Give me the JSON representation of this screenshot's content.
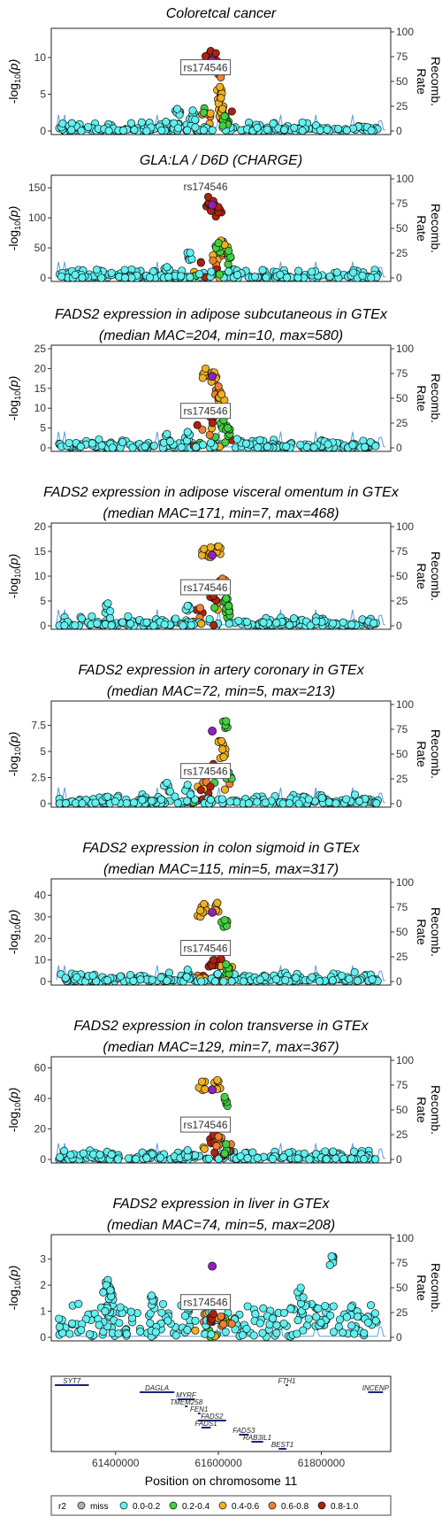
{
  "colors": {
    "miss": "#b0b0b0",
    "r2_0": "#60f0f0",
    "r2_1": "#40d040",
    "r2_2": "#f0b020",
    "r2_3": "#f08030",
    "r2_4": "#b02010",
    "lead": "#9020c0",
    "recomb": "#5a9ee0"
  },
  "shared": {
    "ylabel": "-log10(p)",
    "ylabel_main": "-log",
    "ylabel_sub": "10",
    "ylabel_paren": "(p)",
    "right_label": "Recomb. Rate",
    "right_ticks": [
      "0",
      "25",
      "50",
      "75",
      "100"
    ],
    "xlabel": "Position on chromosome 11",
    "xticks": [
      "61400000",
      "61600000",
      "61800000"
    ],
    "lead_snp": "rs174546"
  },
  "legend": {
    "title": "r2",
    "items": [
      {
        "label": "miss",
        "color": "#b0b0b0"
      },
      {
        "label": "0.0-0.2",
        "color": "#60f0f0"
      },
      {
        "label": "0.2-0.4",
        "color": "#40d040"
      },
      {
        "label": "0.4-0.6",
        "color": "#f0b020"
      },
      {
        "label": "0.6-0.8",
        "color": "#f08030"
      },
      {
        "label": "0.8-1.0",
        "color": "#b02010"
      }
    ]
  },
  "genes": [
    {
      "name": "SYT7",
      "start": 61282000,
      "end": 61348000,
      "row": 0,
      "lab": "left"
    },
    {
      "name": "DAGLA",
      "start": 61447000,
      "end": 61514000,
      "row": 1,
      "lab": "left"
    },
    {
      "name": "MYRF",
      "start": 61520000,
      "end": 61554000,
      "row": 2,
      "lab": "left"
    },
    {
      "name": "TMEM258",
      "start": 61535000,
      "end": 61540000,
      "row": 3,
      "lab": "left"
    },
    {
      "name": "FEN1",
      "start": 61560000,
      "end": 61565000,
      "row": 4,
      "lab": "left"
    },
    {
      "name": "FADS2",
      "start": 61560000,
      "end": 61615000,
      "row": 5,
      "lab": "left"
    },
    {
      "name": "FADS1",
      "start": 61567000,
      "end": 61585000,
      "row": 6,
      "lab": "left"
    },
    {
      "name": "FADS3",
      "start": 61640000,
      "end": 61659000,
      "row": 7,
      "lab": "left"
    },
    {
      "name": "RAB3IL1",
      "start": 61664000,
      "end": 61687000,
      "row": 8,
      "lab": "left"
    },
    {
      "name": "BEST1",
      "start": 61717000,
      "end": 61732000,
      "row": 9,
      "lab": "left"
    },
    {
      "name": "FTH1",
      "start": 61731000,
      "end": 61735000,
      "row": 0,
      "lab": "left"
    },
    {
      "name": "INCENP",
      "start": 61891000,
      "end": 61920000,
      "row": 1,
      "lab": "left"
    }
  ],
  "chart_data": [
    {
      "type": "scatter",
      "title": "Coloretcal cancer",
      "subtitle": "",
      "ylim": [
        0,
        13.5
      ],
      "yticks": [
        0,
        5,
        10
      ],
      "max_neglog10p": 10.9,
      "snp_label_y": 8.5,
      "peaks": [
        {
          "x": 61585000,
          "y": 10.9,
          "r2": 4
        },
        {
          "x": 61595000,
          "y": 10.6,
          "r2": 4
        },
        {
          "x": 61575000,
          "y": 10.2,
          "r2": 4
        },
        {
          "x": 61600000,
          "y": 8.5,
          "r2": 3
        },
        {
          "x": 61603000,
          "y": 6.0,
          "r2": 2
        },
        {
          "x": 61605000,
          "y": 4.5,
          "r2": 2
        },
        {
          "x": 61608000,
          "y": 3.0,
          "r2": 2
        },
        {
          "x": 61612000,
          "y": 2.0,
          "r2": 1
        },
        {
          "x": 61520000,
          "y": 3.0,
          "r2": 0
        },
        {
          "x": 61550000,
          "y": 2.8,
          "r2": 0
        }
      ]
    },
    {
      "type": "scatter",
      "title": "GLA:LA / D6D (CHARGE)",
      "subtitle": "",
      "ylim": [
        0,
        165
      ],
      "yticks": [
        0,
        50,
        100,
        150
      ],
      "max_neglog10p": 138,
      "snp_label_y": 150,
      "peaks": [
        {
          "x": 61580000,
          "y": 135,
          "r2": 4
        },
        {
          "x": 61590000,
          "y": 128,
          "r2": 4
        },
        {
          "x": 61600000,
          "y": 118,
          "r2": 4
        },
        {
          "x": 61605000,
          "y": 62,
          "r2": 2
        },
        {
          "x": 61612000,
          "y": 55,
          "r2": 2
        },
        {
          "x": 61620000,
          "y": 45,
          "r2": 1
        },
        {
          "x": 61600000,
          "y": 58,
          "r2": 1
        },
        {
          "x": 61545000,
          "y": 42,
          "r2": 0
        },
        {
          "x": 61500000,
          "y": 18,
          "r2": 0
        }
      ]
    },
    {
      "type": "scatter",
      "title": "FADS2 expression in adipose subcutaneous in GTEx",
      "subtitle": "(median MAC=204, min=10, max=580)",
      "ylim": [
        0,
        25
      ],
      "yticks": [
        0,
        5,
        10,
        15,
        20,
        25
      ],
      "max_neglog10p": 20.5,
      "snp_label_y": 9,
      "peaks": [
        {
          "x": 61575000,
          "y": 20.0,
          "r2": 2
        },
        {
          "x": 61592000,
          "y": 19.0,
          "r2": 2
        },
        {
          "x": 61600000,
          "y": 15.5,
          "r2": 3
        },
        {
          "x": 61606000,
          "y": 13.5,
          "r2": 2
        },
        {
          "x": 61585000,
          "y": 8.5,
          "r2": 4
        },
        {
          "x": 61610000,
          "y": 7.0,
          "r2": 1
        },
        {
          "x": 61618000,
          "y": 5.0,
          "r2": 1
        },
        {
          "x": 61540000,
          "y": 4.0,
          "r2": 0
        },
        {
          "x": 61500000,
          "y": 3.5,
          "r2": 0
        }
      ]
    },
    {
      "type": "scatter",
      "title": "FADS2 expression in adipose visceral omentum in GTEx",
      "subtitle": "(median MAC=171, min=7, max=468)",
      "ylim": [
        0,
        20
      ],
      "yticks": [
        0,
        5,
        10,
        15,
        20
      ],
      "max_neglog10p": 16.2,
      "snp_label_y": 7.5,
      "peaks": [
        {
          "x": 61572000,
          "y": 15.5,
          "r2": 2
        },
        {
          "x": 61585000,
          "y": 15.8,
          "r2": 2
        },
        {
          "x": 61600000,
          "y": 16.0,
          "r2": 2
        },
        {
          "x": 61608000,
          "y": 9.5,
          "r2": 3
        },
        {
          "x": 61590000,
          "y": 6.0,
          "r2": 4
        },
        {
          "x": 61615000,
          "y": 5.5,
          "r2": 1
        },
        {
          "x": 61620000,
          "y": 4.0,
          "r2": 1
        },
        {
          "x": 61385000,
          "y": 4.5,
          "r2": 0
        },
        {
          "x": 61540000,
          "y": 4.0,
          "r2": 0
        }
      ]
    },
    {
      "type": "scatter",
      "title": "FADS2 expression in artery coronary in GTEx",
      "subtitle": "(median MAC=72, min=5, max=213)",
      "ylim": [
        0,
        9.5
      ],
      "yticks": [
        0,
        2.5,
        5,
        7.5
      ],
      "max_neglog10p": 7.9,
      "snp_label_y": 3.0,
      "peaks": [
        {
          "x": 61615000,
          "y": 7.9,
          "r2": 1
        },
        {
          "x": 61606000,
          "y": 6.0,
          "r2": 2
        },
        {
          "x": 61608000,
          "y": 5.2,
          "r2": 2
        },
        {
          "x": 61590000,
          "y": 3.8,
          "r2": 4
        },
        {
          "x": 61600000,
          "y": 3.5,
          "r2": 3
        },
        {
          "x": 61620000,
          "y": 3.0,
          "r2": 1
        },
        {
          "x": 61500000,
          "y": 2.0,
          "r2": 0
        },
        {
          "x": 61540000,
          "y": 1.8,
          "r2": 0
        }
      ]
    },
    {
      "type": "scatter",
      "title": "FADS2 expression in colon sigmoid in GTEx",
      "subtitle": "(median MAC=115, min=5, max=317)",
      "ylim": [
        0,
        46
      ],
      "yticks": [
        0,
        10,
        20,
        30,
        40
      ],
      "max_neglog10p": 36.5,
      "snp_label_y": 15,
      "peaks": [
        {
          "x": 61572000,
          "y": 36.0,
          "r2": 2
        },
        {
          "x": 61565000,
          "y": 33.0,
          "r2": 2
        },
        {
          "x": 61598000,
          "y": 36.5,
          "r2": 2
        },
        {
          "x": 61612000,
          "y": 28.5,
          "r2": 1
        },
        {
          "x": 61600000,
          "y": 17.5,
          "r2": 2
        },
        {
          "x": 61590000,
          "y": 10.0,
          "r2": 4
        },
        {
          "x": 61615000,
          "y": 8.0,
          "r2": 1
        },
        {
          "x": 61540000,
          "y": 5.5,
          "r2": 0
        }
      ]
    },
    {
      "type": "scatter",
      "title": "FADS2 expression in colon transverse in GTEx",
      "subtitle": "(median MAC=129, min=7, max=367)",
      "ylim": [
        0,
        65
      ],
      "yticks": [
        0,
        20,
        40,
        60
      ],
      "max_neglog10p": 52,
      "snp_label_y": 22,
      "peaks": [
        {
          "x": 61568000,
          "y": 51.0,
          "r2": 2
        },
        {
          "x": 61598000,
          "y": 52.0,
          "r2": 2
        },
        {
          "x": 61612000,
          "y": 41.0,
          "r2": 1
        },
        {
          "x": 61590000,
          "y": 16.0,
          "r2": 4
        },
        {
          "x": 61600000,
          "y": 15.0,
          "r2": 3
        },
        {
          "x": 61615000,
          "y": 10.0,
          "r2": 1
        },
        {
          "x": 61540000,
          "y": 6.0,
          "r2": 0
        }
      ]
    },
    {
      "type": "scatter",
      "title": "FADS2 expression in liver in GTEx",
      "subtitle": "(median MAC=74, min=5, max=208)",
      "ylim": [
        0,
        3.8
      ],
      "yticks": [
        0,
        1,
        2,
        3
      ],
      "max_neglog10p": 3.1,
      "snp_label_y": 1.3,
      "peaks": [
        {
          "x": 61820000,
          "y": 3.1,
          "r2": 0
        },
        {
          "x": 61385000,
          "y": 2.2,
          "r2": 0
        },
        {
          "x": 61382000,
          "y": 2.0,
          "r2": 0
        },
        {
          "x": 61390000,
          "y": 1.8,
          "r2": 0
        },
        {
          "x": 61760000,
          "y": 1.9,
          "r2": 0
        },
        {
          "x": 61470000,
          "y": 1.6,
          "r2": 0
        },
        {
          "x": 61590000,
          "y": 0.9,
          "r2": 4
        },
        {
          "x": 61605000,
          "y": 0.8,
          "r2": 3
        }
      ]
    }
  ]
}
